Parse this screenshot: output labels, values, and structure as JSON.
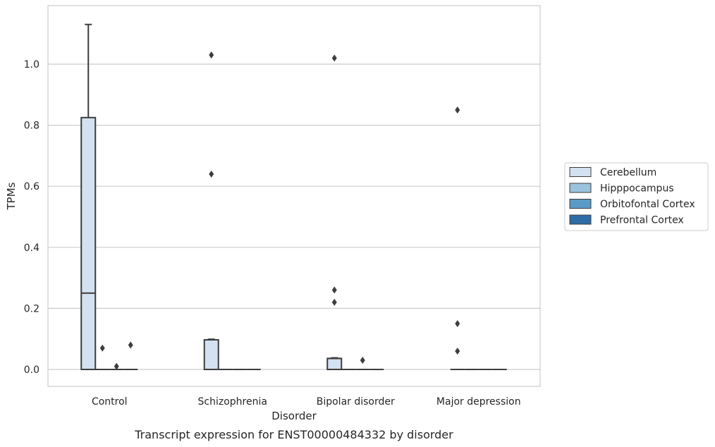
{
  "chart_data": {
    "type": "box",
    "xlabel": "Disorder",
    "ylabel": "TPMs",
    "caption": "Transcript expression for ENST00000484332 by disorder",
    "categories": [
      "Control",
      "Schizophrenia",
      "Bipolar disorder",
      "Major depression"
    ],
    "ylim": [
      -0.055,
      1.195
    ],
    "yticks": [
      "0.0",
      "0.2",
      "0.4",
      "0.6",
      "0.8",
      "1.0"
    ],
    "grid": true,
    "legend_position": "right",
    "series": [
      {
        "name": "Cerebellum",
        "color": "#d3e1f0",
        "boxes": [
          {
            "q1": 0.0,
            "median": 0.25,
            "q3": 0.825,
            "whisker_low": 0.0,
            "whisker_high": 1.13,
            "outliers": []
          },
          {
            "q1": 0.0,
            "median": 0.097,
            "q3": 0.097,
            "whisker_low": 0.0,
            "whisker_high": 0.099,
            "outliers": [
              0.64,
              1.03
            ]
          },
          {
            "q1": 0.0,
            "median": 0.036,
            "q3": 0.036,
            "whisker_low": 0.0,
            "whisker_high": 0.038,
            "outliers": [
              0.22,
              0.26,
              1.02
            ]
          },
          {
            "q1": 0.0,
            "median": 0.0,
            "q3": 0.0,
            "whisker_low": 0.0,
            "whisker_high": 0.0,
            "outliers": [
              0.06,
              0.15,
              0.85
            ]
          }
        ]
      },
      {
        "name": "Hipppocampus",
        "color": "#9ac3dd",
        "boxes": [
          {
            "q1": 0.0,
            "median": 0.0,
            "q3": 0.0,
            "whisker_low": 0.0,
            "whisker_high": 0.0,
            "outliers": [
              0.07
            ]
          },
          {
            "q1": 0.0,
            "median": 0.0,
            "q3": 0.0,
            "whisker_low": 0.0,
            "whisker_high": 0.0,
            "outliers": []
          },
          {
            "q1": 0.0,
            "median": 0.0,
            "q3": 0.0,
            "whisker_low": 0.0,
            "whisker_high": 0.0,
            "outliers": []
          },
          {
            "q1": 0.0,
            "median": 0.0,
            "q3": 0.0,
            "whisker_low": 0.0,
            "whisker_high": 0.0,
            "outliers": []
          }
        ]
      },
      {
        "name": "Orbitofontal Cortex",
        "color": "#5a9ac6",
        "boxes": [
          {
            "q1": 0.0,
            "median": 0.0,
            "q3": 0.0,
            "whisker_low": 0.0,
            "whisker_high": 0.0,
            "outliers": [
              0.01
            ]
          },
          {
            "q1": 0.0,
            "median": 0.0,
            "q3": 0.0,
            "whisker_low": 0.0,
            "whisker_high": 0.0,
            "outliers": []
          },
          {
            "q1": 0.0,
            "median": 0.0,
            "q3": 0.0,
            "whisker_low": 0.0,
            "whisker_high": 0.0,
            "outliers": [
              0.03
            ]
          },
          {
            "q1": 0.0,
            "median": 0.0,
            "q3": 0.0,
            "whisker_low": 0.0,
            "whisker_high": 0.0,
            "outliers": []
          }
        ]
      },
      {
        "name": "Prefrontal Cortex",
        "color": "#2e6ca6",
        "boxes": [
          {
            "q1": 0.0,
            "median": 0.0,
            "q3": 0.0,
            "whisker_low": 0.0,
            "whisker_high": 0.0,
            "outliers": [
              0.08
            ]
          },
          {
            "q1": 0.0,
            "median": 0.0,
            "q3": 0.0,
            "whisker_low": 0.0,
            "whisker_high": 0.0,
            "outliers": []
          },
          {
            "q1": 0.0,
            "median": 0.0,
            "q3": 0.0,
            "whisker_low": 0.0,
            "whisker_high": 0.0,
            "outliers": []
          },
          {
            "q1": 0.0,
            "median": 0.0,
            "q3": 0.0,
            "whisker_low": 0.0,
            "whisker_high": 0.0,
            "outliers": []
          }
        ]
      }
    ]
  }
}
